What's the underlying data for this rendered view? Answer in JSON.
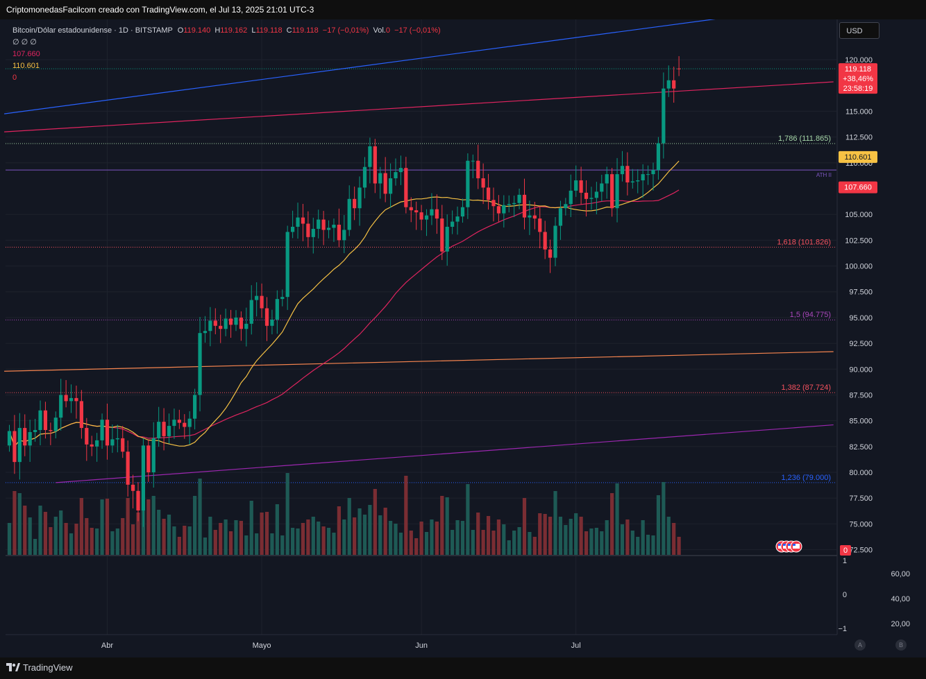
{
  "header": {
    "attribution": "CriptomonedasFacilcom creado con TradingView.com, el Jul 13, 2025 21:01 UTC-3"
  },
  "legend": {
    "symbol": "Bitcoin/Dólar estadounidense · 1D · BITSTAMP",
    "o_label": "O",
    "o_value": "119.140",
    "h_label": "H",
    "h_value": "119.162",
    "l_label": "L",
    "l_value": "119.118",
    "c_label": "C",
    "c_value": "119.118",
    "change": "−17 (−0,01%)",
    "vol_label": "Vol.",
    "vol_value": "0",
    "vol_change": "−17 (−0,01%)",
    "indicator_row": "∅  ∅  ∅",
    "ma_slow_value": "107.660",
    "ma_fast_value": "110.601",
    "third_value": "0"
  },
  "currency_button": "USD",
  "colors": {
    "bg": "#131722",
    "up": "#089981",
    "down": "#f23645",
    "vol_up": "#1e5a55",
    "vol_down": "#7a2d33",
    "ma_fast": "#f7c244",
    "ma_slow": "#e0245f",
    "grid": "#1e222d",
    "text": "#d1d4dc",
    "fib_green": "#a5d6a7",
    "fib_red": "#f7525f",
    "fib_purple": "#ab47bc",
    "fib_blue": "#2962ff",
    "trend_blue": "#2962ff",
    "trend_red": "#e0245f",
    "trend_orange": "#f7854f",
    "trend_purple": "#9c27b0",
    "ath_line": "#7e57c2"
  },
  "price_axis": {
    "ticks": [
      "120.000",
      "115.000",
      "112.500",
      "110.000",
      "105.000",
      "102.500",
      "100.000",
      "97.500",
      "95.000",
      "92.500",
      "90.000",
      "87.500",
      "85.000",
      "82.500",
      "80.000",
      "77.500",
      "75.000",
      "72.500"
    ],
    "tick_values": [
      120000,
      115000,
      112500,
      110000,
      105000,
      102500,
      100000,
      97500,
      95000,
      92500,
      90000,
      87500,
      85000,
      82500,
      80000,
      77500,
      75000,
      72500
    ],
    "last_price_label": "119.118",
    "last_change_label": "+38,46%",
    "countdown_label": "23:58:19",
    "ma_fast_label": "110.601",
    "ma_slow_label": "107.660",
    "zero_label": "0"
  },
  "fib_levels": [
    {
      "label": "1,786 (111.865)",
      "price": 111865,
      "color_key": "fib_green"
    },
    {
      "label": "1,618 (101.826)",
      "price": 101826,
      "color_key": "fib_red"
    },
    {
      "label": "1,5 (94.775)",
      "price": 94775,
      "color_key": "fib_purple"
    },
    {
      "label": "1,382 (87.724)",
      "price": 87724,
      "color_key": "fib_red"
    },
    {
      "label": "1,236 (79.000)",
      "price": 79000,
      "color_key": "fib_blue"
    }
  ],
  "ath_label": "ATH II",
  "ath_price": 109300,
  "lower_pane": {
    "left_ticks": [
      "1",
      "0",
      "−1"
    ],
    "right_ticks": [
      "60,00",
      "40,00",
      "20,00"
    ]
  },
  "time_axis": {
    "labels": [
      "Abr",
      "Mayo",
      "Jun",
      "Jul"
    ],
    "day_index": [
      19,
      49,
      80,
      110
    ]
  },
  "bottom_buttons": [
    "A",
    "B"
  ],
  "footer_logo": "TradingView",
  "chart_data": {
    "type": "candlestick",
    "period": "1D",
    "symbol": "BTCUSD",
    "ylim": [
      72000,
      123500
    ],
    "start_date": "2025-03-13",
    "closes": [
      84000,
      81000,
      84300,
      82600,
      83900,
      84100,
      86000,
      84100,
      84000,
      85300,
      87500,
      86900,
      87200,
      86900,
      84300,
      82700,
      82500,
      83100,
      85100,
      82600,
      83200,
      83300,
      82000,
      78800,
      78200,
      76300,
      82600,
      80000,
      83300,
      84900,
      83500,
      84500,
      85100,
      84800,
      84400,
      85200,
      87500,
      93500,
      93700,
      94700,
      94200,
      93900,
      94900,
      94300,
      95000,
      93900,
      94400,
      96700,
      97100,
      95900,
      94200,
      94800,
      96800,
      97000,
      103300,
      103800,
      104700,
      104100,
      102800,
      103600,
      104500,
      103500,
      103700,
      104000,
      102500,
      103500,
      106500,
      105600,
      107600,
      109600,
      111600,
      108000,
      109000,
      107000,
      108500,
      109100,
      109500,
      105700,
      105400,
      105200,
      104500,
      104900,
      105500,
      104600,
      101400,
      103800,
      104300,
      104800,
      105700,
      110200,
      110200,
      108500,
      107600,
      106400,
      105800,
      105100,
      105900,
      106000,
      106100,
      106900,
      104700,
      104900,
      104600,
      103300,
      101600,
      100800,
      103900,
      105600,
      106000,
      107300,
      108300,
      107100,
      106500,
      106600,
      107200,
      108000,
      108900,
      105600,
      108900,
      109700,
      108100,
      108200,
      108300,
      108900,
      108900,
      109300,
      111900,
      117200,
      118000,
      117200,
      119118
    ],
    "opens": [
      82600,
      84000,
      81000,
      84300,
      82600,
      83900,
      84100,
      86000,
      84100,
      84000,
      85300,
      87500,
      86900,
      87200,
      86900,
      84300,
      82700,
      82500,
      83100,
      85100,
      82600,
      83200,
      83300,
      82000,
      78800,
      78200,
      76300,
      82600,
      80000,
      83300,
      84900,
      83500,
      84500,
      85100,
      84800,
      84400,
      85200,
      87500,
      93500,
      93700,
      94700,
      94200,
      93900,
      94900,
      94300,
      95000,
      93900,
      94400,
      96700,
      97100,
      95900,
      94200,
      94800,
      96800,
      97000,
      103300,
      103800,
      104700,
      104100,
      102800,
      103600,
      104500,
      103500,
      103700,
      104000,
      102500,
      103500,
      106500,
      105600,
      107600,
      109600,
      111600,
      108000,
      109000,
      107000,
      108500,
      109100,
      109500,
      105700,
      105400,
      105200,
      104500,
      104900,
      105500,
      104600,
      101400,
      103800,
      104300,
      104800,
      105700,
      110200,
      110200,
      108500,
      107600,
      106400,
      105800,
      105100,
      105900,
      106000,
      106100,
      106900,
      104700,
      104900,
      104600,
      103300,
      101600,
      100800,
      103900,
      105600,
      106000,
      107300,
      108300,
      107100,
      106500,
      106600,
      107200,
      108000,
      108900,
      105600,
      108900,
      109700,
      108100,
      108200,
      108300,
      108900,
      108900,
      109300,
      111900,
      117200,
      118000,
      119140
    ],
    "ma_fast_label": "110.601",
    "ma_slow_label": "107.660"
  }
}
